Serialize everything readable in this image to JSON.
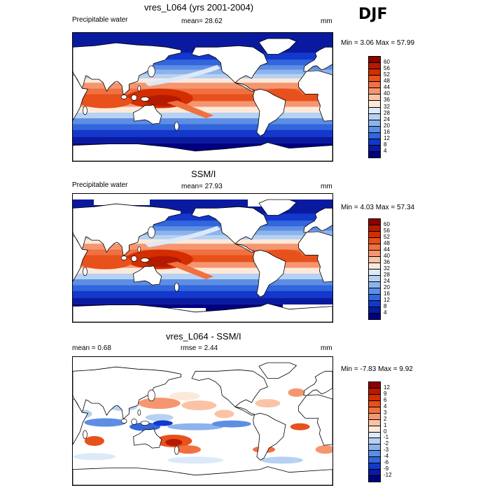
{
  "season": "DJF",
  "panels": [
    {
      "title": "vres_L064 (yrs 2001-2004)",
      "left_label": "Precipitable water",
      "center_label": "mean=  28.62",
      "units": "mm",
      "minmax": "Min =   3.06 Max =  57.99",
      "kind": "seq"
    },
    {
      "title": "SSM/I",
      "left_label": "Precipitable water",
      "center_label": "mean=  27.93",
      "units": "mm",
      "minmax": "Min =   4.03 Max =  57.34",
      "kind": "seq"
    },
    {
      "title": "vres_L064 - SSM/I",
      "left_label": "mean =   0.68",
      "center_label": "rmse =   2.44",
      "units": "mm",
      "minmax": "Min =  -7.83 Max =   9.92",
      "kind": "diff"
    }
  ],
  "colorbars": {
    "seq": {
      "labels": [
        "60",
        "56",
        "52",
        "48",
        "44",
        "40",
        "36",
        "32",
        "28",
        "24",
        "20",
        "16",
        "12",
        "8",
        "4"
      ],
      "colors": [
        "#8b0000",
        "#b51a00",
        "#d42d00",
        "#e8501c",
        "#f07040",
        "#f59670",
        "#fbc3a5",
        "#fde9d9",
        "#dce9f8",
        "#b6d1f2",
        "#8db3ec",
        "#5e8ee4",
        "#3166dd",
        "#1238cc",
        "#0a1aa0",
        "#000080"
      ]
    },
    "diff": {
      "labels": [
        "12",
        "9",
        "6",
        "4",
        "3",
        "2",
        "1",
        "0",
        "-1",
        "-2",
        "-3",
        "-4",
        "-6",
        "-9",
        "-12"
      ],
      "colors": [
        "#8b0000",
        "#b51a00",
        "#d42d00",
        "#e8501c",
        "#f07040",
        "#f59670",
        "#fbc3a5",
        "#fde9d9",
        "#dce9f8",
        "#b6d1f2",
        "#8db3ec",
        "#5e8ee4",
        "#3166dd",
        "#1238cc",
        "#0a1aa0",
        "#000080"
      ]
    }
  }
}
